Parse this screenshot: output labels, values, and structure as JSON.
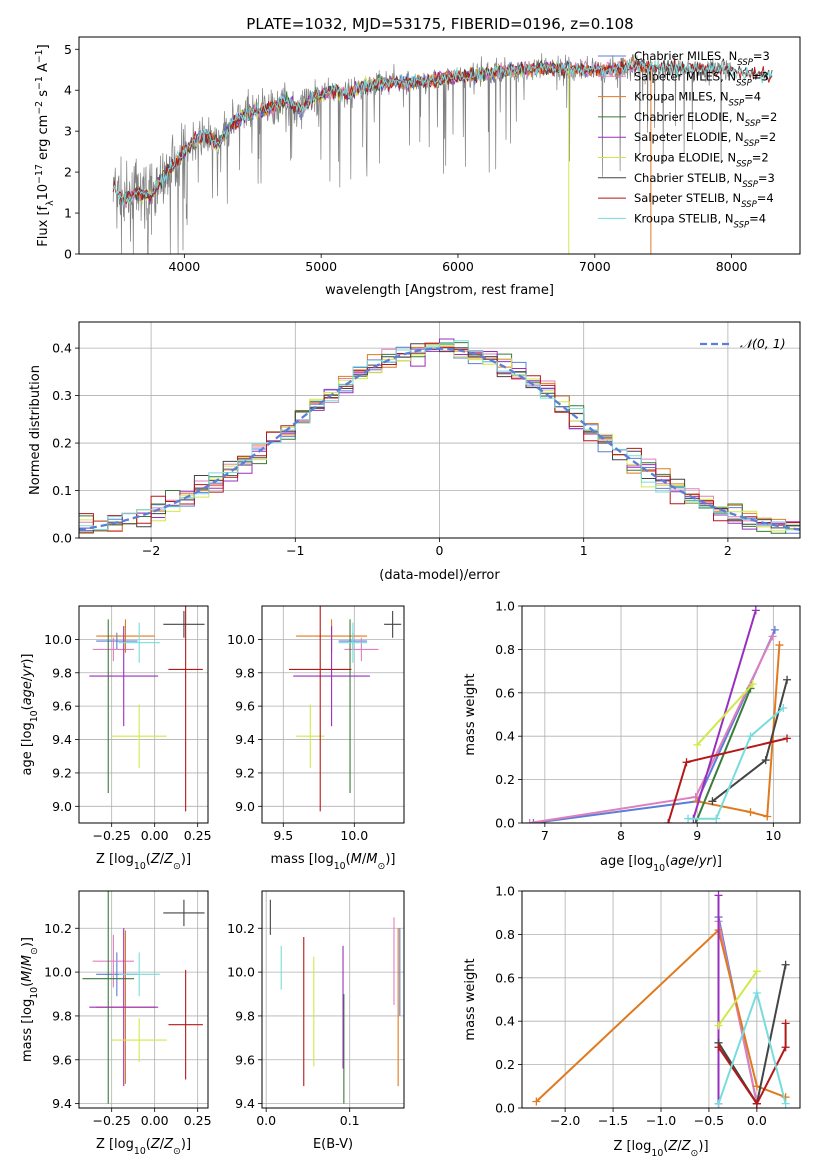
{
  "colors": {
    "Chabrier MILES": "#5b7fd6",
    "Salpeter MILES": "#e07fbf",
    "Kroupa MILES": "#e07a1f",
    "Chabrier ELODIE": "#3a7a3a",
    "Salpeter ELODIE": "#9a2fbf",
    "Kroupa ELODIE": "#d2e84a",
    "Chabrier STELIB": "#444444",
    "Salpeter STELIB": "#b51818",
    "Kroupa STELIB": "#78dcdc",
    "data": "#808080",
    "normal": "#5b7fd6"
  },
  "legend": [
    {
      "model": "Chabrier MILES",
      "nssp": "3"
    },
    {
      "model": "Salpeter MILES",
      "nssp": "3"
    },
    {
      "model": "Kroupa MILES",
      "nssp": "4"
    },
    {
      "model": "Chabrier ELODIE",
      "nssp": "2"
    },
    {
      "model": "Salpeter ELODIE",
      "nssp": "2"
    },
    {
      "model": "Kroupa ELODIE",
      "nssp": "2"
    },
    {
      "model": "Chabrier STELIB",
      "nssp": "3"
    },
    {
      "model": "Salpeter STELIB",
      "nssp": "4"
    },
    {
      "model": "Kroupa STELIB",
      "nssp": "4"
    }
  ],
  "chart_data": [
    {
      "id": "spectrum",
      "type": "line",
      "title": "PLATE=1032, MJD=53175, FIBERID=0196, z=0.108",
      "xlabel": "wavelength [Angstrom, rest frame]",
      "ylabel": "Flux [f",
      "ylabel_parts": {
        "pre": "Flux [f",
        "sub": "λ",
        "mid": "10",
        "exp": "−17",
        "post": " erg cm",
        "exp2": "−2",
        "post2": " s",
        "exp3": "−1",
        "post3": " A",
        "exp4": "−1",
        "end": "]"
      },
      "xlim": [
        3230,
        8500
      ],
      "ylim": [
        0,
        5.3
      ],
      "xticks": [
        4000,
        5000,
        6000,
        7000,
        8000
      ],
      "yticks": [
        0,
        1,
        2,
        3,
        4,
        5
      ],
      "continuum": [
        [
          3450,
          1.8
        ],
        [
          3550,
          1.3
        ],
        [
          3650,
          1.5
        ],
        [
          3750,
          1.4
        ],
        [
          3850,
          1.9
        ],
        [
          3950,
          2.3
        ],
        [
          4050,
          2.7
        ],
        [
          4150,
          2.9
        ],
        [
          4250,
          2.7
        ],
        [
          4350,
          3.2
        ],
        [
          4450,
          3.4
        ],
        [
          4550,
          3.5
        ],
        [
          4650,
          3.6
        ],
        [
          4750,
          3.75
        ],
        [
          4850,
          3.5
        ],
        [
          4950,
          3.85
        ],
        [
          5100,
          4.0
        ],
        [
          5200,
          3.9
        ],
        [
          5300,
          4.1
        ],
        [
          5500,
          4.2
        ],
        [
          5700,
          4.2
        ],
        [
          5900,
          4.3
        ],
        [
          6100,
          4.35
        ],
        [
          6300,
          4.45
        ],
        [
          6500,
          4.5
        ],
        [
          6700,
          4.55
        ],
        [
          6900,
          4.5
        ],
        [
          7100,
          4.5
        ],
        [
          7300,
          4.6
        ],
        [
          7600,
          4.55
        ],
        [
          7900,
          4.5
        ],
        [
          8300,
          4.35
        ]
      ],
      "data_range": [
        3480,
        8000
      ]
    },
    {
      "id": "residuals",
      "type": "line",
      "xlabel": "(data-model)/error",
      "ylabel": "Normed distribution",
      "legend_entry": "N(0,1)",
      "xlim": [
        -2.5,
        2.5
      ],
      "ylim": [
        0,
        0.455
      ],
      "xticks": [
        -2,
        -1,
        0,
        1,
        2
      ],
      "yticks": [
        0.0,
        0.1,
        0.2,
        0.3,
        0.4
      ]
    },
    {
      "id": "age-vs-z",
      "type": "scatter",
      "xlabel": "Z [log10(Z/Z⊙)]",
      "ylabel": "age [log10(age/yr)]",
      "xlim": [
        -0.44,
        0.31
      ],
      "ylim": [
        8.9,
        10.2
      ],
      "xticks": [
        -0.25,
        0.0,
        0.25
      ],
      "yticks": [
        9.0,
        9.2,
        9.4,
        9.6,
        9.8,
        10.0
      ],
      "points": [
        {
          "s": "Chabrier MILES",
          "x": -0.22,
          "y": 9.99,
          "xerr": 0.12,
          "yerr": 0.05
        },
        {
          "s": "Salpeter MILES",
          "x": -0.24,
          "y": 9.94,
          "xerr": 0.12,
          "yerr": 0.07
        },
        {
          "s": "Kroupa MILES",
          "x": -0.17,
          "y": 10.02,
          "xerr": 0.17,
          "yerr": 0.1
        },
        {
          "s": "Chabrier ELODIE",
          "x": -0.27,
          "y": 9.6,
          "xerr": 0.0,
          "yerr": 0.52
        },
        {
          "s": "Salpeter ELODIE",
          "x": -0.18,
          "y": 9.78,
          "xerr": 0.2,
          "yerr": 0.3
        },
        {
          "s": "Kroupa ELODIE",
          "x": -0.09,
          "y": 9.42,
          "xerr": 0.16,
          "yerr": 0.19
        },
        {
          "s": "Chabrier STELIB",
          "x": 0.17,
          "y": 10.09,
          "xerr": 0.12,
          "yerr": 0.08
        },
        {
          "s": "Salpeter STELIB",
          "x": 0.18,
          "y": 9.82,
          "xerr": 0.1,
          "yerr": 0.85
        },
        {
          "s": "Kroupa STELIB",
          "x": -0.09,
          "y": 9.98,
          "xerr": 0.12,
          "yerr": 0.12
        }
      ]
    },
    {
      "id": "age-vs-mass",
      "type": "scatter",
      "xlabel": "mass [log10(M/M⊙)]",
      "xlim": [
        9.35,
        10.35
      ],
      "ylim": [
        8.9,
        10.2
      ],
      "xticks": [
        9.5,
        10.0
      ],
      "yticks": [
        9.0,
        9.2,
        9.4,
        9.6,
        9.8,
        10.0
      ],
      "points": [
        {
          "s": "Chabrier MILES",
          "x": 9.99,
          "y": 9.99,
          "xerr": 0.1,
          "yerr": 0.05
        },
        {
          "s": "Salpeter MILES",
          "x": 10.05,
          "y": 9.94,
          "xerr": 0.12,
          "yerr": 0.07
        },
        {
          "s": "Kroupa MILES",
          "x": 9.84,
          "y": 10.02,
          "xerr": 0.25,
          "yerr": 0.1
        },
        {
          "s": "Chabrier ELODIE",
          "x": 9.97,
          "y": 9.6,
          "xerr": 0.0,
          "yerr": 0.52
        },
        {
          "s": "Salpeter ELODIE",
          "x": 9.84,
          "y": 9.78,
          "xerr": 0.27,
          "yerr": 0.3
        },
        {
          "s": "Kroupa ELODIE",
          "x": 9.69,
          "y": 9.42,
          "xerr": 0.1,
          "yerr": 0.19
        },
        {
          "s": "Chabrier STELIB",
          "x": 10.27,
          "y": 10.09,
          "xerr": 0.06,
          "yerr": 0.08
        },
        {
          "s": "Salpeter STELIB",
          "x": 9.76,
          "y": 9.82,
          "xerr": 0.22,
          "yerr": 0.85
        },
        {
          "s": "Kroupa STELIB",
          "x": 9.99,
          "y": 9.98,
          "xerr": 0.1,
          "yerr": 0.12
        }
      ]
    },
    {
      "id": "weight-vs-age",
      "type": "line",
      "xlabel": "age [log10(age/yr)]",
      "ylabel": "mass weight",
      "xlim": [
        6.7,
        10.35
      ],
      "ylim": [
        0,
        1
      ],
      "xticks": [
        7,
        8,
        9,
        10
      ],
      "yticks": [
        0.0,
        0.2,
        0.4,
        0.6,
        0.8,
        1.0
      ],
      "series": [
        {
          "name": "Chabrier MILES",
          "x": [
            6.85,
            9.0,
            10.02
          ],
          "y": [
            0.0,
            0.1,
            0.89
          ]
        },
        {
          "name": "Salpeter MILES",
          "x": [
            6.8,
            8.98,
            9.99
          ],
          "y": [
            0.0,
            0.12,
            0.86
          ]
        },
        {
          "name": "Kroupa MILES",
          "x": [
            9.0,
            9.7,
            9.92,
            10.08
          ],
          "y": [
            0.1,
            0.05,
            0.03,
            0.82
          ]
        },
        {
          "name": "Chabrier ELODIE",
          "x": [
            8.98,
            9.7
          ],
          "y": [
            0.0,
            0.62
          ]
        },
        {
          "name": "Salpeter ELODIE",
          "x": [
            8.95,
            9.77
          ],
          "y": [
            0.02,
            0.98
          ]
        },
        {
          "name": "Kroupa ELODIE",
          "x": [
            9.0,
            9.73
          ],
          "y": [
            0.36,
            0.64
          ]
        },
        {
          "name": "Chabrier STELIB",
          "x": [
            9.2,
            9.9,
            10.18
          ],
          "y": [
            0.1,
            0.29,
            0.66
          ]
        },
        {
          "name": "Salpeter STELIB",
          "x": [
            8.62,
            8.86,
            10.18
          ],
          "y": [
            0.0,
            0.28,
            0.39
          ]
        },
        {
          "name": "Kroupa STELIB",
          "x": [
            8.88,
            9.25,
            9.7,
            10.13
          ],
          "y": [
            0.02,
            0.02,
            0.4,
            0.53
          ]
        }
      ]
    },
    {
      "id": "mass-vs-z",
      "type": "scatter",
      "xlabel": "Z [log10(Z/Z⊙)]",
      "ylabel": "mass [log10(M/M⊙)]",
      "xlim": [
        -0.44,
        0.31
      ],
      "ylim": [
        9.38,
        10.37
      ],
      "xticks": [
        -0.25,
        0.0,
        0.25
      ],
      "yticks": [
        9.4,
        9.6,
        9.8,
        10.0,
        10.2
      ],
      "points": [
        {
          "s": "Chabrier MILES",
          "x": -0.22,
          "y": 9.99,
          "xerr": 0.12,
          "yerr": 0.1
        },
        {
          "s": "Salpeter MILES",
          "x": -0.24,
          "y": 10.05,
          "xerr": 0.12,
          "yerr": 0.12
        },
        {
          "s": "Kroupa MILES",
          "x": -0.17,
          "y": 9.84,
          "xerr": 0.17,
          "yerr": 0.35
        },
        {
          "s": "Chabrier ELODIE",
          "x": -0.27,
          "y": 9.97,
          "xerr": 0.15,
          "yerr": 0.57
        },
        {
          "s": "Salpeter ELODIE",
          "x": -0.18,
          "y": 9.84,
          "xerr": 0.2,
          "yerr": 0.36
        },
        {
          "s": "Kroupa ELODIE",
          "x": -0.09,
          "y": 9.69,
          "xerr": 0.16,
          "yerr": 0.1
        },
        {
          "s": "Chabrier STELIB",
          "x": 0.17,
          "y": 10.27,
          "xerr": 0.12,
          "yerr": 0.06
        },
        {
          "s": "Salpeter STELIB",
          "x": 0.18,
          "y": 9.76,
          "xerr": 0.1,
          "yerr": 0.25
        },
        {
          "s": "Kroupa STELIB",
          "x": -0.09,
          "y": 9.99,
          "xerr": 0.12,
          "yerr": 0.1
        }
      ]
    },
    {
      "id": "mass-vs-ebv",
      "type": "scatter",
      "xlabel": "E(B-V)",
      "xlim": [
        -0.005,
        0.165
      ],
      "ylim": [
        9.38,
        10.37
      ],
      "xticks": [
        0.0,
        0.1
      ],
      "yticks": [
        9.4,
        9.6,
        9.8,
        10.0,
        10.2
      ],
      "points": [
        {
          "s": "Chabrier STELIB",
          "x": 0.005,
          "y": 10.25,
          "yerr": 0.08
        },
        {
          "s": "Kroupa STELIB",
          "x": 0.018,
          "y": 10.02,
          "yerr": 0.1
        },
        {
          "s": "Salpeter STELIB",
          "x": 0.045,
          "y": 9.82,
          "yerr": 0.34
        },
        {
          "s": "Kroupa ELODIE",
          "x": 0.057,
          "y": 9.82,
          "yerr": 0.25
        },
        {
          "s": "Chabrier ELODIE",
          "x": 0.093,
          "y": 9.65,
          "yerr": 0.25
        },
        {
          "s": "Salpeter ELODIE",
          "x": 0.092,
          "y": 9.84,
          "yerr": 0.28
        },
        {
          "s": "Salpeter MILES",
          "x": 0.153,
          "y": 10.05,
          "yerr": 0.2
        },
        {
          "s": "Kroupa MILES",
          "x": 0.158,
          "y": 9.84,
          "yerr": 0.36
        },
        {
          "s": "Chabrier MILES",
          "x": 0.16,
          "y": 10.0,
          "yerr": 0.2
        }
      ]
    },
    {
      "id": "weight-vs-z",
      "type": "line",
      "xlabel": "Z [log10(Z/Z⊙)]",
      "ylabel": "mass weight",
      "xlim": [
        -2.45,
        0.45
      ],
      "ylim": [
        0,
        1
      ],
      "xticks": [
        -2.0,
        -1.5,
        -1.0,
        -0.5,
        0.0
      ],
      "yticks": [
        0.0,
        0.2,
        0.4,
        0.6,
        0.8,
        1.0
      ],
      "series": [
        {
          "name": "Chabrier MILES",
          "x": [
            -0.4,
            0.0
          ],
          "y": [
            0.88,
            0.02
          ]
        },
        {
          "name": "Salpeter MILES",
          "x": [
            -0.4,
            0.0
          ],
          "y": [
            0.86,
            0.02
          ]
        },
        {
          "name": "Kroupa MILES",
          "x": [
            -2.3,
            -0.4,
            0.0,
            0.3
          ],
          "y": [
            0.03,
            0.82,
            0.1,
            0.05
          ]
        },
        {
          "name": "Chabrier ELODIE",
          "x": [
            -0.4,
            0.0
          ],
          "y": [
            0.3,
            0.02
          ]
        },
        {
          "name": "Salpeter ELODIE",
          "x": [
            -0.4,
            -0.4
          ],
          "y": [
            0.02,
            0.98
          ]
        },
        {
          "name": "Kroupa ELODIE",
          "x": [
            -0.4,
            0.0
          ],
          "y": [
            0.38,
            0.63
          ]
        },
        {
          "name": "Chabrier STELIB",
          "x": [
            -0.4,
            0.0,
            0.3
          ],
          "y": [
            0.3,
            0.02,
            0.66
          ]
        },
        {
          "name": "Salpeter STELIB",
          "x": [
            -0.4,
            0.0,
            0.3,
            0.3
          ],
          "y": [
            0.28,
            0.02,
            0.28,
            0.39
          ]
        },
        {
          "name": "Kroupa STELIB",
          "x": [
            -0.4,
            0.0,
            0.3
          ],
          "y": [
            0.02,
            0.53,
            0.02
          ]
        }
      ]
    }
  ]
}
